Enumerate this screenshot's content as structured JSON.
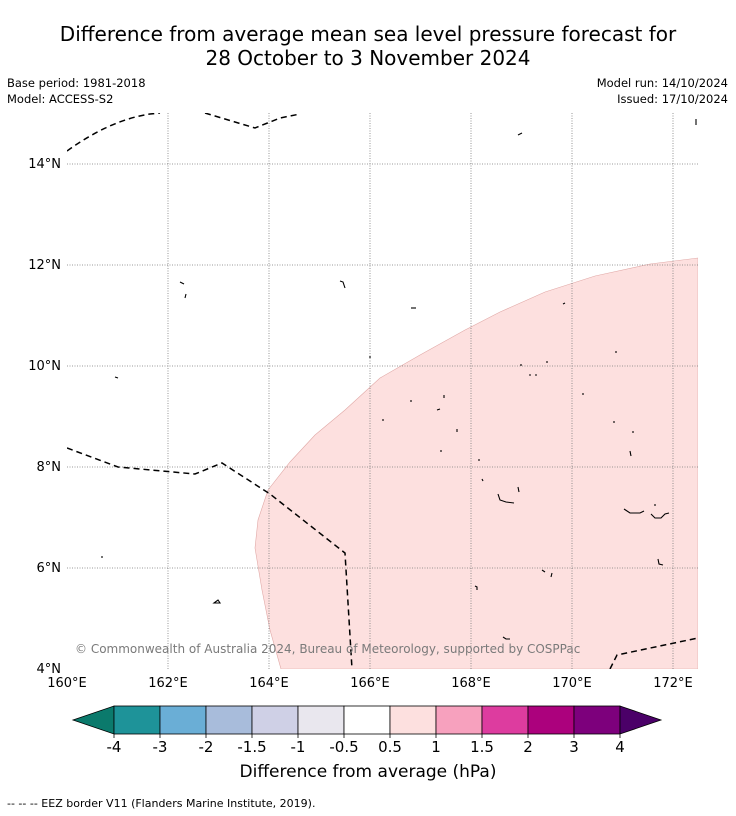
{
  "title": {
    "line1": "Difference from average mean sea level pressure forecast for",
    "line2": "28 October to 3 November 2024"
  },
  "meta": {
    "base_period": "Base period: 1981-2018",
    "model": "Model: ACCESS-S2",
    "model_run": "Model run: 14/10/2024",
    "issued": "Issued: 17/10/2024"
  },
  "map": {
    "lat_labels": [
      "14°N",
      "12°N",
      "10°N",
      "8°N",
      "6°N",
      "4°N"
    ],
    "lon_labels": [
      "160°E",
      "162°E",
      "164°E",
      "166°E",
      "168°E",
      "170°E",
      "172°E"
    ],
    "shaded_region_category": "0.5 to 1",
    "shaded_region_color": "#fde0df",
    "copyright": "© Commonwealth of Australia 2024, Bureau of Meteorology, supported by COSPPac"
  },
  "colorbar": {
    "tick_labels": [
      "-4",
      "-3",
      "-2",
      "-1.5",
      "-1",
      "-0.5",
      "0.5",
      "1",
      "1.5",
      "2",
      "3",
      "4"
    ],
    "colors": [
      "#0b7a6c",
      "#1e9399",
      "#6aaed6",
      "#a8bcdb",
      "#cfd0e6",
      "#e9e7ee",
      "#ffffff",
      "#fde0df",
      "#f7a1be",
      "#dd3c9f",
      "#ac017d",
      "#7d007c",
      "#4b0068"
    ],
    "title": "Difference from average (hPa)"
  },
  "legend": {
    "text": "--  --  -- EEZ border V11 (Flanders Marine Institute, 2019)."
  }
}
